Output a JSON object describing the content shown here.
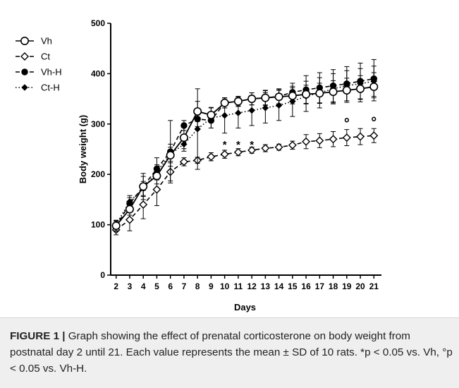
{
  "chart_data": {
    "type": "line",
    "xlabel": "Days",
    "ylabel": "Body weight (g)",
    "ylim": [
      0,
      500
    ],
    "yticks": [
      0,
      100,
      200,
      300,
      400,
      500
    ],
    "x": [
      2,
      3,
      4,
      5,
      6,
      7,
      8,
      9,
      10,
      11,
      12,
      13,
      14,
      15,
      16,
      17,
      18,
      19,
      20,
      21
    ],
    "grid": false,
    "legend_position": "top-left",
    "series": [
      {
        "name": "Vh",
        "marker": "open-circle",
        "line": "solid",
        "values": [
          98,
          131,
          176,
          197,
          238,
          273,
          325,
          318,
          342,
          345,
          350,
          352,
          354,
          356,
          359,
          361,
          364,
          367,
          370,
          374
        ],
        "errors": [
          10,
          12,
          20,
          16,
          22,
          22,
          20,
          15,
          10,
          9,
          12,
          14,
          14,
          16,
          18,
          20,
          22,
          24,
          26,
          28
        ]
      },
      {
        "name": "Ct",
        "marker": "open-diamond",
        "line": "dashed",
        "values": [
          90,
          110,
          140,
          170,
          205,
          225,
          228,
          235,
          240,
          244,
          248,
          252,
          254,
          258,
          265,
          267,
          270,
          273,
          275,
          277
        ],
        "errors": [
          10,
          22,
          28,
          32,
          18,
          8,
          6,
          8,
          8,
          7,
          6,
          7,
          6,
          8,
          14,
          14,
          15,
          16,
          16,
          14
        ]
      },
      {
        "name": "Vh-H",
        "marker": "filled-circle",
        "line": "dashed",
        "values": [
          97,
          142,
          176,
          211,
          245,
          297,
          310,
          307,
          342,
          345,
          350,
          352,
          355,
          363,
          368,
          372,
          376,
          380,
          385,
          390
        ],
        "errors": [
          10,
          12,
          26,
          22,
          62,
          10,
          15,
          15,
          10,
          10,
          12,
          15,
          15,
          18,
          28,
          30,
          32,
          34,
          36,
          38
        ]
      },
      {
        "name": "Ct-H",
        "marker": "filled-diamond",
        "line": "dotted",
        "values": [
          101,
          146,
          172,
          205,
          240,
          260,
          290,
          312,
          317,
          322,
          327,
          332,
          337,
          345,
          355,
          362,
          370,
          376,
          380,
          385
        ],
        "errors": [
          8,
          12,
          14,
          14,
          14,
          14,
          80,
          20,
          35,
          30,
          30,
          30,
          30,
          30,
          30,
          30,
          30,
          30,
          30,
          30
        ]
      }
    ],
    "annotations": [
      {
        "x": 10,
        "y": 266,
        "text": "*"
      },
      {
        "x": 11,
        "y": 266,
        "text": "*"
      },
      {
        "x": 12,
        "y": 266,
        "text": "*"
      },
      {
        "x": 19,
        "y": 306,
        "text": "°"
      },
      {
        "x": 21,
        "y": 308,
        "text": "°"
      }
    ]
  },
  "caption": {
    "label": "FIGURE 1 |",
    "text": " Graph showing the effect of prenatal corticosterone on body weight from postnatal day 2 until 21. Each value represents the mean ± SD of 10 rats. *p < 0.05 vs. Vh, °p < 0.05 vs. Vh-H."
  }
}
